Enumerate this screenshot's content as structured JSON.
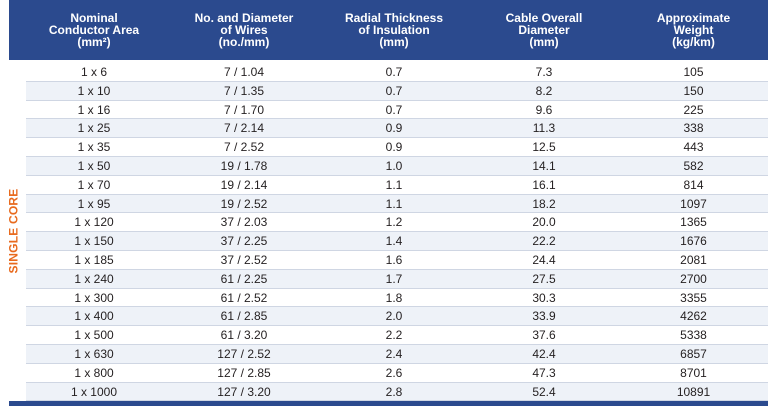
{
  "table": {
    "headers": [
      "Nominal\nConductor Area\n(mm²)",
      "No. and Diameter\nof Wires\n(no./mm)",
      "Radial Thickness\nof Insulation\n(mm)",
      "Cable Overall\nDiameter\n(mm)",
      "Approximate\nWeight\n(kg/km)"
    ],
    "group_label": "SINGLE CORE",
    "rows": [
      [
        "1 x 6",
        "7 / 1.04",
        "0.7",
        "7.3",
        "105"
      ],
      [
        "1 x 10",
        "7 / 1.35",
        "0.7",
        "8.2",
        "150"
      ],
      [
        "1 x 16",
        "7 / 1.70",
        "0.7",
        "9.6",
        "225"
      ],
      [
        "1 x 25",
        "7 / 2.14",
        "0.9",
        "11.3",
        "338"
      ],
      [
        "1 x 35",
        "7 / 2.52",
        "0.9",
        "12.5",
        "443"
      ],
      [
        "1 x 50",
        "19 / 1.78",
        "1.0",
        "14.1",
        "582"
      ],
      [
        "1 x 70",
        "19 / 2.14",
        "1.1",
        "16.1",
        "814"
      ],
      [
        "1 x 95",
        "19 / 2.52",
        "1.1",
        "18.2",
        "1097"
      ],
      [
        "1 x 120",
        "37 / 2.03",
        "1.2",
        "20.0",
        "1365"
      ],
      [
        "1 x 150",
        "37 / 2.25",
        "1.4",
        "22.2",
        "1676"
      ],
      [
        "1 x 185",
        "37 / 2.52",
        "1.6",
        "24.4",
        "2081"
      ],
      [
        "1 x 240",
        "61 / 2.25",
        "1.7",
        "27.5",
        "2700"
      ],
      [
        "1 x 300",
        "61 / 2.52",
        "1.8",
        "30.3",
        "3355"
      ],
      [
        "1 x 400",
        "61 / 2.85",
        "2.0",
        "33.9",
        "4262"
      ],
      [
        "1 x 500",
        "61 / 3.20",
        "2.2",
        "37.6",
        "5338"
      ],
      [
        "1 x 630",
        "127 / 2.52",
        "2.4",
        "42.4",
        "6857"
      ],
      [
        "1 x 800",
        "127 / 2.85",
        "2.6",
        "47.3",
        "8701"
      ],
      [
        "1 x 1000",
        "127 / 3.20",
        "2.8",
        "52.4",
        "10891"
      ]
    ]
  },
  "colors": {
    "header_bg": "#2b4a8e",
    "header_text": "#ffffff",
    "group_label": "#e86a1e",
    "row_shade": "#eef2f8",
    "row_rule": "#cfd6e3"
  }
}
